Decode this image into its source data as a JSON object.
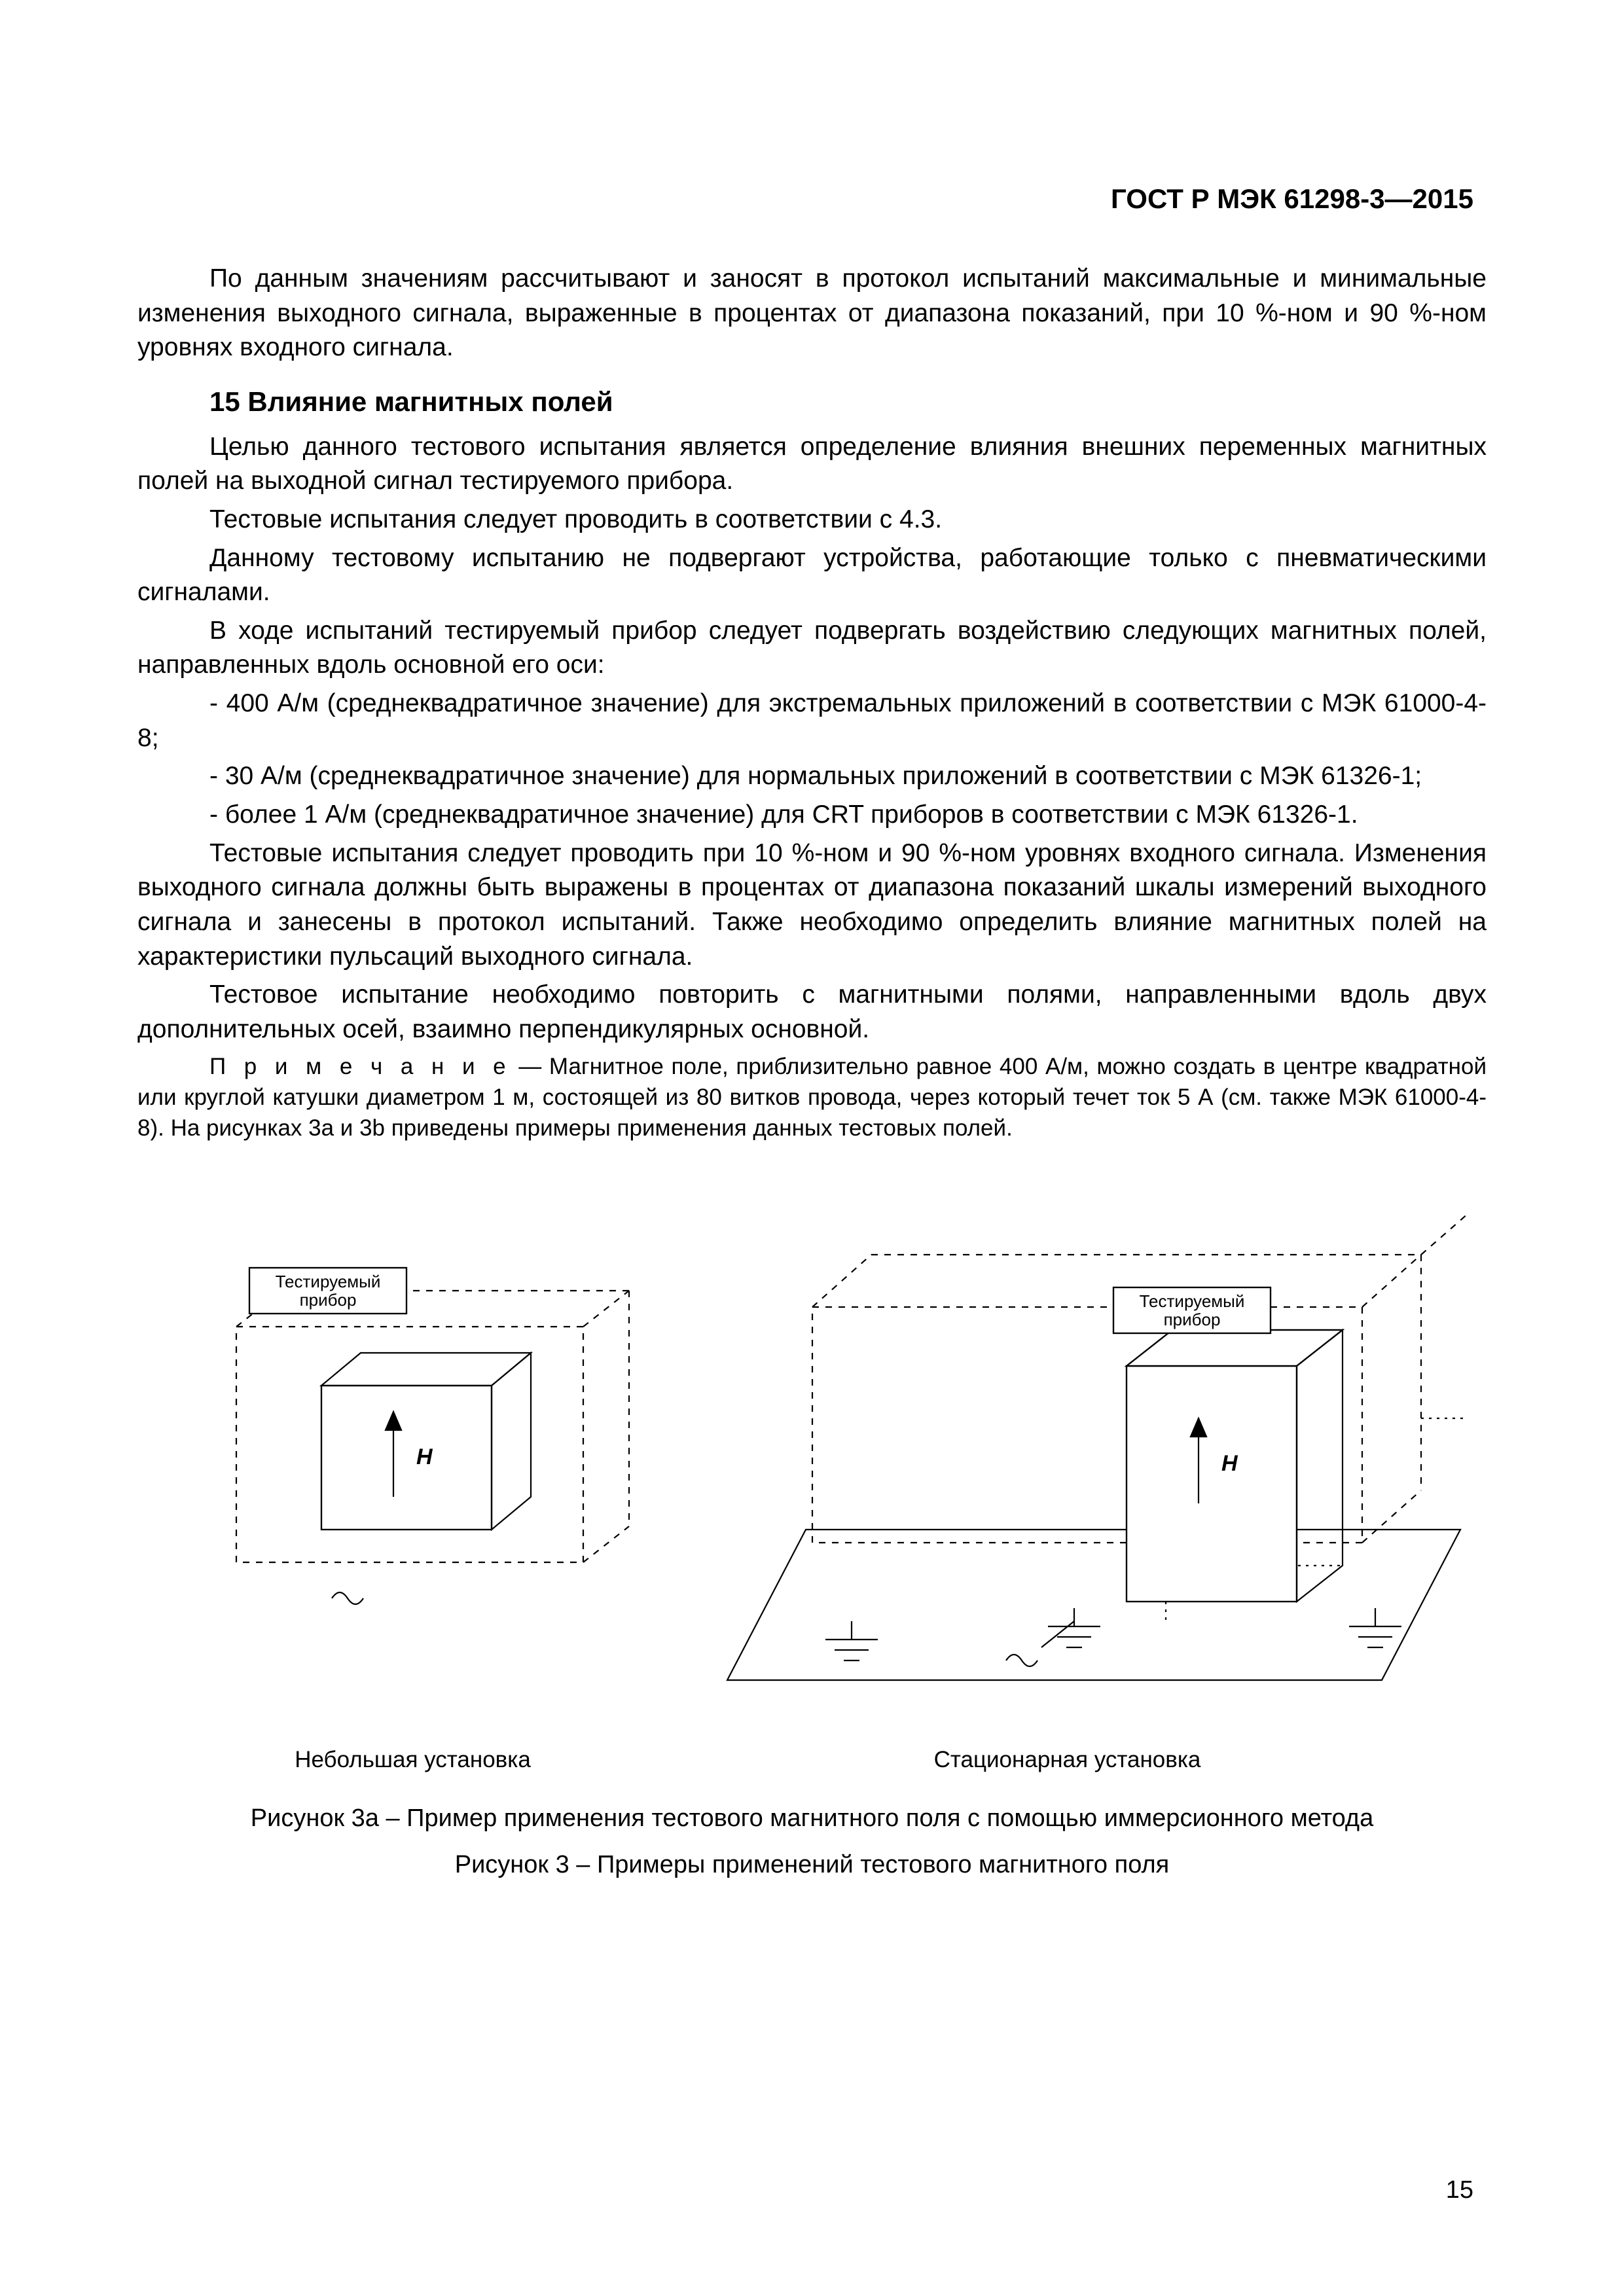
{
  "header": {
    "standard_id": "ГОСТ Р МЭК 61298-3—2015"
  },
  "intro_para": "По данным значениям рассчитывают и заносят в протокол испытаний максимальные и минимальные изменения выходного сигнала, выраженные в процентах от диапазона показаний, при 10 %-ном и 90 %-ном уровнях входного сигнала.",
  "section15": {
    "heading": "15 Влияние магнитных полей",
    "p1": "Целью данного тестового испытания является определение влияния внешних переменных магнитных полей на  выходной сигнал тестируемого прибора.",
    "p2": "Тестовые испытания следует проводить в соответствии с 4.3.",
    "p3": "Данному тестовому испытанию не подвергают устройства, работающие только с пневматическими сигналами.",
    "p4": "В ходе испытаний тестируемый прибор следует подвергать воздействию следующих магнитных полей, направленных вдоль основной его оси:",
    "li1": "- 400 А/м (среднеквадратичное значение) для экстремальных приложений в соответствии с МЭК 61000-4-8;",
    "li2": "- 30 А/м (среднеквадратичное значение) для нормальных приложений в соответствии с МЭК 61326-1;",
    "li3": "- более 1 А/м (среднеквадратичное значение) для CRT приборов в соответствии с МЭК 61326-1.",
    "p5": "Тестовые испытания следует проводить при 10 %-ном и 90 %-ном уровнях входного сигнала. Изменения выходного сигнала должны быть выражены в процентах от диапазона показаний шкалы измерений выходного сигнала и занесены в протокол испытаний. Также необходимо определить влияние магнитных полей на характеристики пульсаций выходного сигнала.",
    "p6": "Тестовое испытание необходимо повторить с магнитными полями, направленными вдоль двух дополнительных осей, взаимно перпендикулярных основной.",
    "note_lead": "П р и м е ч а н и е",
    "note_dash": "  —  ",
    "note_body": "Магнитное поле, приблизительно равное 400 А/м, можно создать в центре квадратной или круглой катушки диаметром 1 м, состоящей из 80 витков провода, через который течет ток 5 А (см. также МЭК 61000-4-8). На рисунках 3а и 3b приведены примеры применения данных тестовых полей."
  },
  "diagram": {
    "left_box_label_line1": "Тестируемый",
    "left_box_label_line2": "прибор",
    "right_box_label_line1": "Тестируемый",
    "right_box_label_line2": "прибор",
    "H_label": "H",
    "left_caption": "Небольшая установка",
    "right_caption": "Стационарная установка",
    "stroke_color": "#000000",
    "stroke_width": 2.2,
    "dash": "10,10",
    "tight_dash": "4,8",
    "font_family": "Arial, Helvetica, sans-serif",
    "box_label_fontsize": 26,
    "H_fontsize": 34
  },
  "captions": {
    "fig3a": "Рисунок 3а – Пример применения тестового магнитного поля с помощью иммерсионного метода",
    "fig3": "Рисунок 3 – Примеры применений тестового магнитного поля"
  },
  "page_number": "15"
}
